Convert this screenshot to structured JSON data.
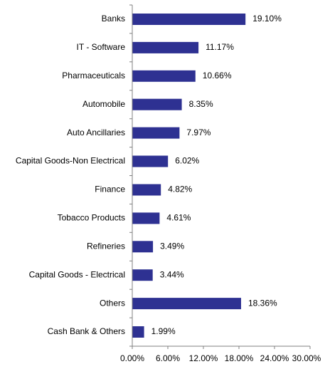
{
  "chart_data": {
    "type": "bar",
    "orientation": "horizontal",
    "categories": [
      "Banks",
      "IT - Software",
      "Pharmaceuticals",
      "Automobile",
      "Auto Ancillaries",
      "Capital Goods-Non Electrical",
      "Finance",
      "Tobacco Products",
      "Refineries",
      "Capital Goods - Electrical",
      "Others",
      "Cash Bank & Others"
    ],
    "values": [
      19.1,
      11.17,
      10.66,
      8.35,
      7.97,
      6.02,
      4.82,
      4.61,
      3.49,
      3.44,
      18.36,
      1.99
    ],
    "value_labels": [
      "19.10%",
      "11.17%",
      "10.66%",
      "8.35%",
      "7.97%",
      "6.02%",
      "4.82%",
      "4.61%",
      "3.49%",
      "3.44%",
      "18.36%",
      "1.99%"
    ],
    "xlim": [
      0,
      30
    ],
    "xticks": [
      0,
      6,
      12,
      18,
      24,
      30
    ],
    "xtick_labels": [
      "0.00%",
      "6.00%",
      "12.00%",
      "18.00%",
      "24.00%",
      "30.00%"
    ],
    "bar_color": "#2e3192",
    "axis_color": "#808080",
    "grid": false,
    "legend": "none"
  }
}
